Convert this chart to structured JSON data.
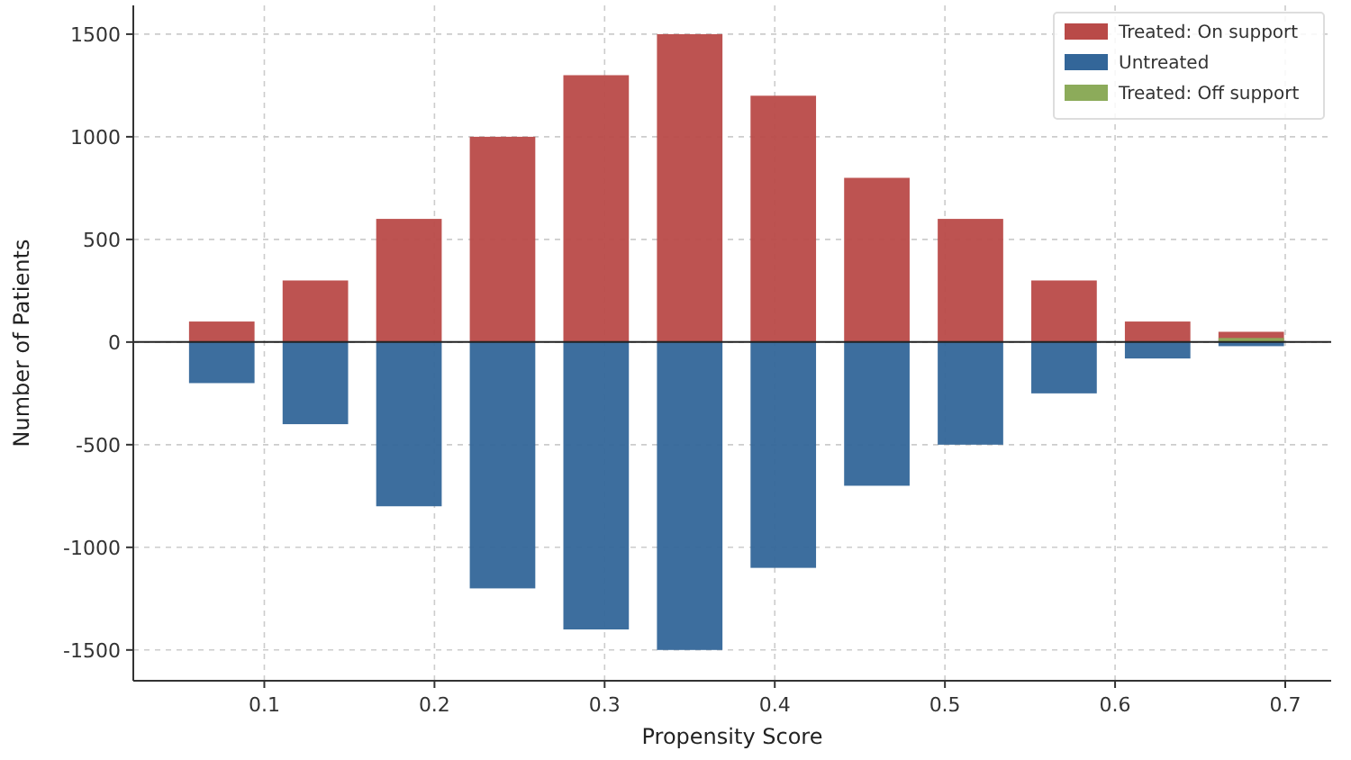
{
  "chart_data": {
    "type": "bar",
    "xlabel": "Propensity Score",
    "ylabel": "Number of Patients",
    "x": [
      0.075,
      0.13,
      0.185,
      0.24,
      0.295,
      0.35,
      0.405,
      0.46,
      0.515,
      0.57,
      0.625,
      0.68
    ],
    "series": [
      {
        "name": "Treated: On support",
        "color": "#b94a48",
        "values": [
          100,
          300,
          600,
          1000,
          1300,
          1500,
          1200,
          800,
          600,
          300,
          100,
          50
        ]
      },
      {
        "name": "Untreated",
        "color": "#336699",
        "values": [
          -200,
          -400,
          -800,
          -1200,
          -1400,
          -1500,
          -1100,
          -700,
          -500,
          -250,
          -80,
          -20
        ]
      },
      {
        "name": "Treated: Off support",
        "color": "#8cab5a",
        "values": [
          null,
          null,
          null,
          null,
          null,
          null,
          null,
          null,
          null,
          null,
          null,
          20
        ]
      }
    ],
    "xlim": [
      0.023,
      0.727
    ],
    "xticks": [
      0.1,
      0.2,
      0.3,
      0.4,
      0.5,
      0.6,
      0.7
    ],
    "ylim": [
      -1650,
      1640
    ],
    "yticks": [
      -1500,
      -1000,
      -500,
      0,
      500,
      1000,
      1500
    ],
    "ref_lines": [
      {
        "axis": "y",
        "value": 0,
        "color": "#222222"
      }
    ],
    "grid": true,
    "legend": "top right"
  }
}
